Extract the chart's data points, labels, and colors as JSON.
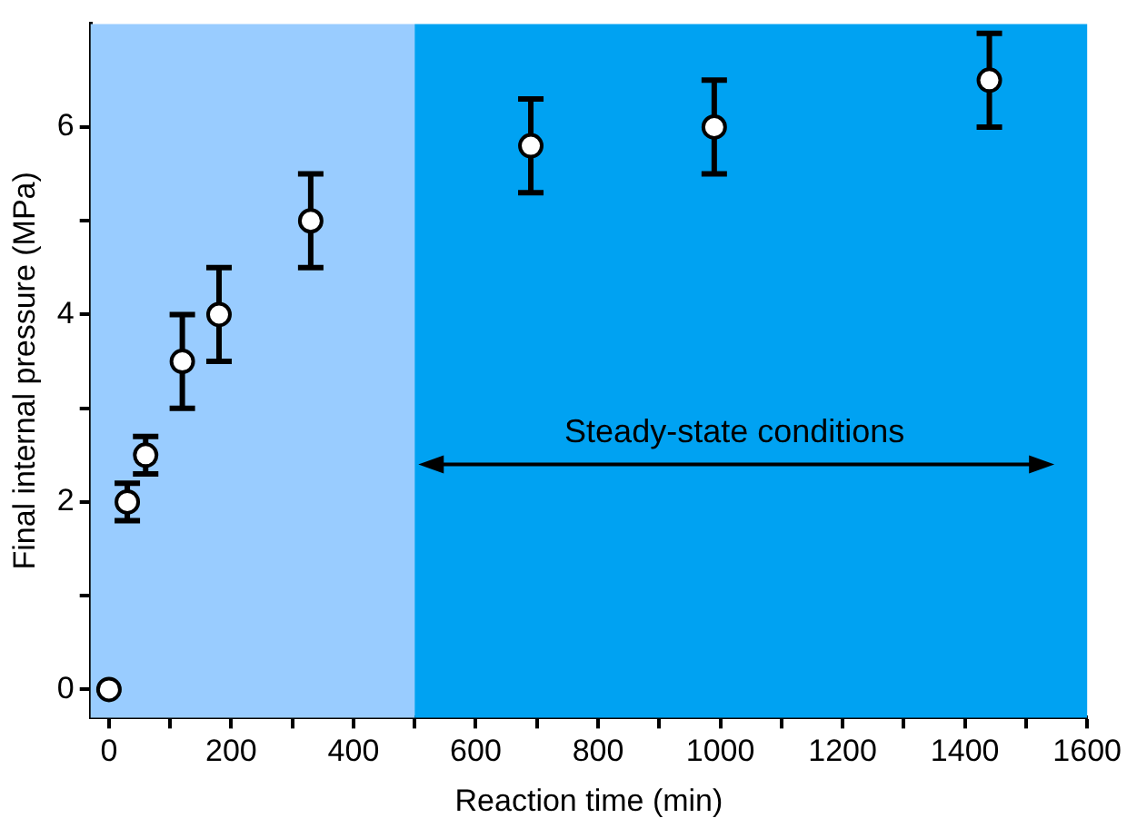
{
  "chart_data": {
    "type": "scatter",
    "xlabel": "Reaction time (min)",
    "ylabel": "Final internal pressure (MPa)",
    "x": [
      0,
      30,
      60,
      120,
      180,
      330,
      690,
      990,
      1440
    ],
    "series": [
      {
        "color": "#ffffff",
        "values": [
          0,
          2,
          2.5,
          3.5,
          4,
          5,
          5.8,
          6,
          6.5
        ],
        "errors": [
          null,
          0.2,
          0.2,
          0.5,
          0.5,
          0.5,
          0.5,
          0.5,
          0.5
        ]
      }
    ],
    "xlim": [
      -30,
      1600
    ],
    "ylim": [
      -0.3,
      7.1
    ],
    "xticks": [
      0,
      {
        "value": 100,
        "label": null
      },
      200,
      {
        "value": 300,
        "label": null
      },
      400,
      {
        "value": 500,
        "label": null
      },
      600,
      {
        "value": 700,
        "label": null
      },
      800,
      {
        "value": 900,
        "label": null
      },
      1000,
      {
        "value": 1100,
        "label": null
      },
      1200,
      {
        "value": 1300,
        "label": null
      },
      1400,
      {
        "value": 1500,
        "label": null
      },
      1600
    ],
    "yticks": [
      0,
      {
        "value": 1,
        "label": null
      },
      2,
      {
        "value": 3,
        "label": null
      },
      4,
      {
        "value": 5,
        "label": null
      },
      6
    ],
    "bands": [
      {
        "axis": "x",
        "from": -30,
        "to": 500,
        "color": "#99ccff"
      },
      {
        "axis": "x",
        "from": 500,
        "to": 1600,
        "color": "#00a2f2"
      }
    ],
    "annotations": [
      "Steady-state conditions"
    ],
    "marker": "circle",
    "grid": false,
    "legend": false
  }
}
